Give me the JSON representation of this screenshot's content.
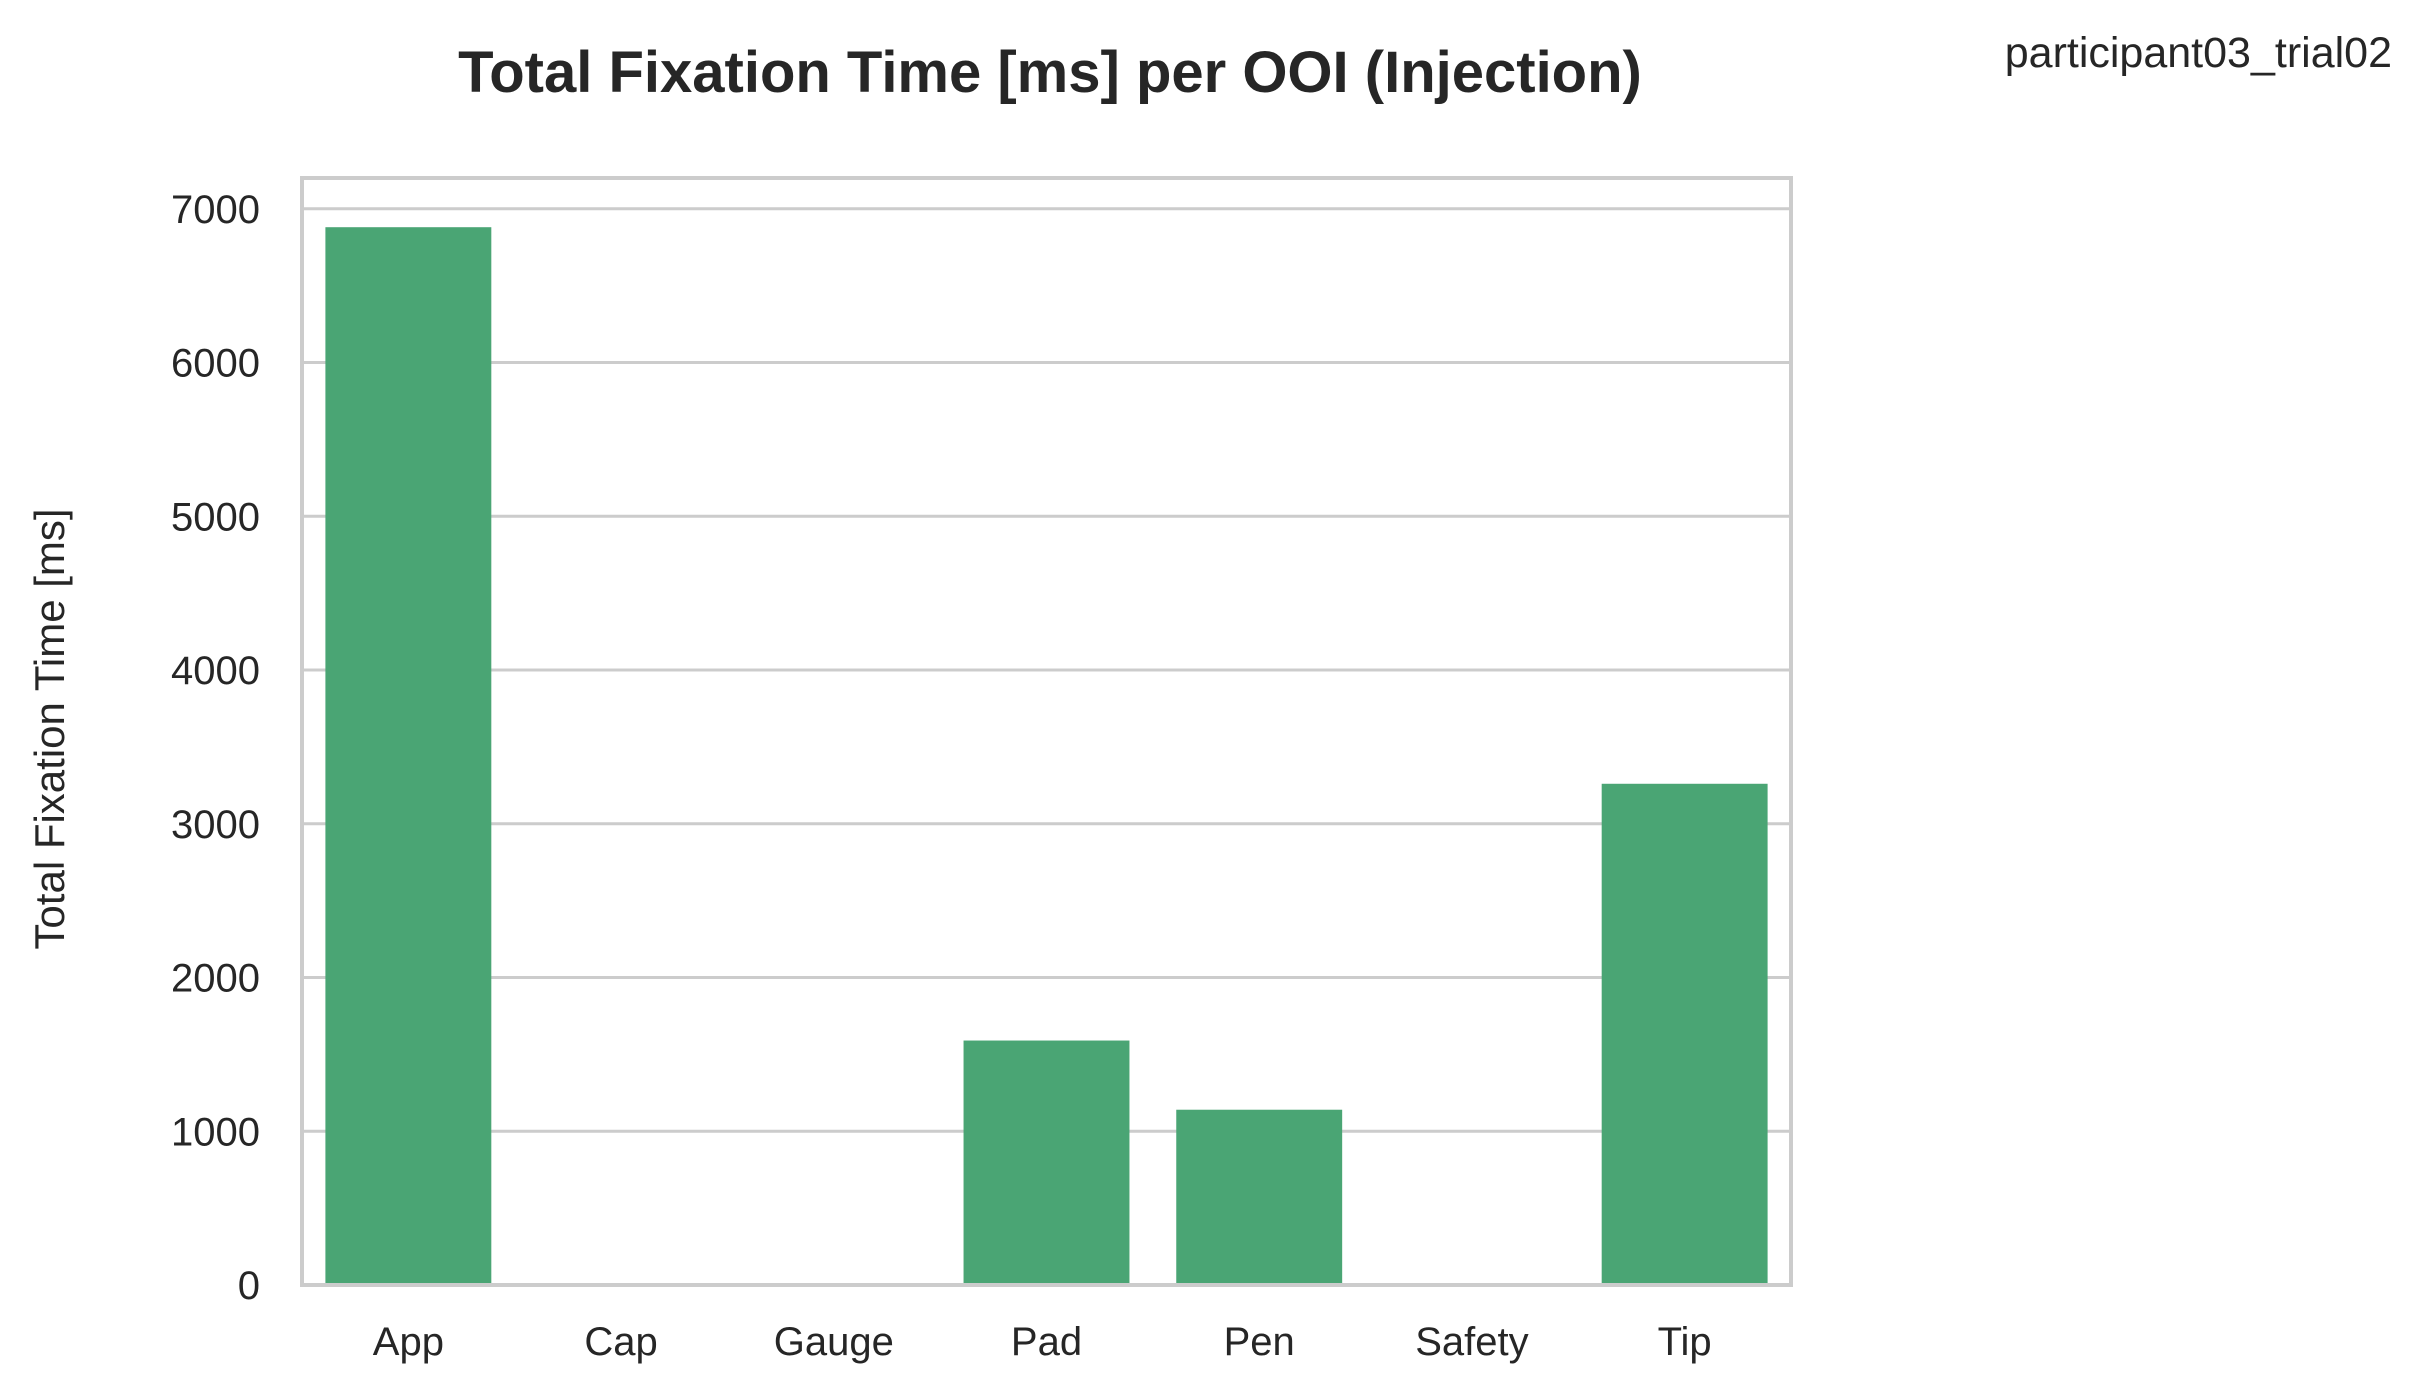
{
  "chart_data": {
    "type": "bar",
    "title": "Total Fixation Time [ms] per OOI (Injection)",
    "annotation": "participant03_trial02",
    "xlabel": "",
    "ylabel": "Total Fixation Time [ms]",
    "categories": [
      "App",
      "Cap",
      "Gauge",
      "Pad",
      "Pen",
      "Safety",
      "Tip"
    ],
    "values": [
      6880,
      0,
      0,
      1590,
      1140,
      0,
      3260
    ],
    "ylim": [
      0,
      7200
    ],
    "yticks": [
      0,
      1000,
      2000,
      3000,
      4000,
      5000,
      6000,
      7000
    ],
    "grid": true,
    "bar_color": "#4aa574",
    "grid_color": "#cccccc",
    "text_color": "#262626"
  }
}
